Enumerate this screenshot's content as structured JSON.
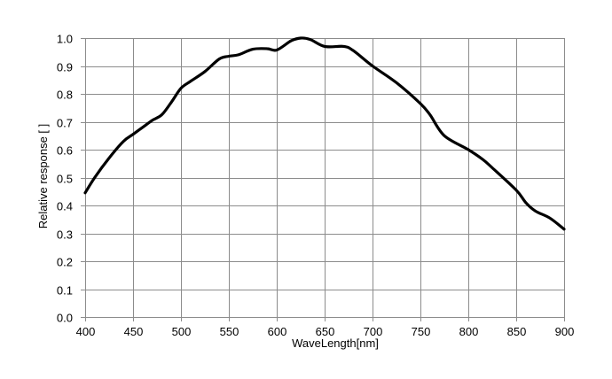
{
  "chart_data": {
    "type": "line",
    "title": "",
    "xlabel": "WaveLength[nm]",
    "ylabel": "Relative response [ ]",
    "xlim": [
      400,
      900
    ],
    "ylim": [
      0.0,
      1.0
    ],
    "x_ticks": [
      "400",
      "450",
      "500",
      "550",
      "600",
      "650",
      "700",
      "750",
      "800",
      "850",
      "900"
    ],
    "y_ticks": [
      "0.0",
      "0.1",
      "0.2",
      "0.3",
      "0.4",
      "0.5",
      "0.6",
      "0.7",
      "0.8",
      "0.9",
      "1.0"
    ],
    "grid": true,
    "legend": null,
    "series": [
      {
        "name": "Relative response",
        "color": "#000000",
        "x": [
          400,
          410,
          425,
          440,
          450,
          460,
          470,
          480,
          490,
          500,
          510,
          525,
          540,
          550,
          560,
          575,
          590,
          600,
          615,
          625,
          635,
          650,
          670,
          680,
          700,
          725,
          750,
          760,
          775,
          800,
          815,
          825,
          850,
          860,
          870,
          885,
          900
        ],
        "y": [
          0.445,
          0.5,
          0.57,
          0.63,
          0.655,
          0.68,
          0.705,
          0.725,
          0.77,
          0.82,
          0.845,
          0.88,
          0.925,
          0.935,
          0.94,
          0.96,
          0.962,
          0.957,
          0.99,
          1.0,
          0.995,
          0.97,
          0.97,
          0.955,
          0.9,
          0.84,
          0.765,
          0.725,
          0.65,
          0.6,
          0.565,
          0.535,
          0.455,
          0.41,
          0.38,
          0.355,
          0.315
        ]
      }
    ]
  },
  "colors": {
    "grid": "#8c8c8c",
    "curve": "#000000",
    "background": "#ffffff"
  }
}
